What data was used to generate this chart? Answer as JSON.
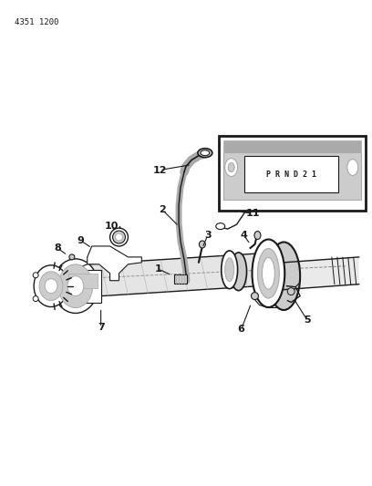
{
  "ref_code": "4351 1200",
  "bg_color": "#ffffff",
  "line_color": "#1a1a1a",
  "gray_color": "#888888",
  "light_gray": "#cccccc",
  "mid_gray": "#aaaaaa",
  "dark_gray": "#444444",
  "fig_width": 4.08,
  "fig_height": 5.33,
  "dpi": 100
}
